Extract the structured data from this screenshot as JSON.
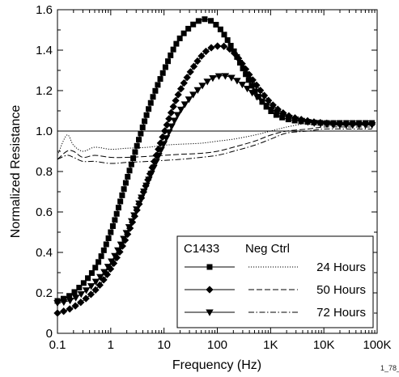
{
  "chart_data": {
    "type": "line",
    "xlabel": "Frequency (Hz)",
    "ylabel": "Normalized Resistance",
    "xscale": "log",
    "xlim": [
      0.1,
      100000
    ],
    "ylim": [
      0,
      1.6
    ],
    "x_ticks": [
      {
        "value": 0.1,
        "label": "0.1"
      },
      {
        "value": 1,
        "label": "1"
      },
      {
        "value": 10,
        "label": "10"
      },
      {
        "value": 100,
        "label": "100"
      },
      {
        "value": 1000,
        "label": "1K"
      },
      {
        "value": 10000,
        "label": "10K"
      },
      {
        "value": 100000,
        "label": "100K"
      }
    ],
    "y_ticks": [
      {
        "value": 0,
        "label": "0"
      },
      {
        "value": 0.2,
        "label": "0.2"
      },
      {
        "value": 0.4,
        "label": "0.4"
      },
      {
        "value": 0.6,
        "label": "0.6"
      },
      {
        "value": 0.8,
        "label": "0.8"
      },
      {
        "value": 1.0,
        "label": "1.0"
      },
      {
        "value": 1.2,
        "label": "1.2"
      },
      {
        "value": 1.4,
        "label": "1.4"
      },
      {
        "value": 1.6,
        "label": "1.6"
      }
    ],
    "reference_line": 1.0,
    "grid": false,
    "legend_placement": "bottom-right",
    "legend_headers": [
      "C1433",
      "Neg Ctrl"
    ],
    "legend_rows": [
      "24 Hours",
      "50 Hours",
      "72 Hours"
    ],
    "figure_id": "1_78_2",
    "series": [
      {
        "group": "C1433",
        "name": "24 Hours",
        "marker": "square",
        "line": "solid",
        "x": [
          0.1,
          0.2,
          0.5,
          1,
          2,
          5,
          10,
          20,
          50,
          100,
          200,
          500,
          1000,
          2000,
          5000,
          10000,
          20000,
          50000,
          80000
        ],
        "y": [
          0.16,
          0.2,
          0.32,
          0.5,
          0.76,
          1.1,
          1.3,
          1.46,
          1.55,
          1.52,
          1.4,
          1.2,
          1.1,
          1.06,
          1.045,
          1.04,
          1.04,
          1.04,
          1.04
        ]
      },
      {
        "group": "C1433",
        "name": "50 Hours",
        "marker": "diamond",
        "line": "solid",
        "x": [
          0.1,
          0.2,
          0.5,
          1,
          2,
          5,
          10,
          20,
          50,
          100,
          200,
          500,
          1000,
          2000,
          5000,
          10000,
          20000,
          50000,
          80000
        ],
        "y": [
          0.1,
          0.13,
          0.21,
          0.32,
          0.48,
          0.76,
          0.99,
          1.2,
          1.37,
          1.42,
          1.39,
          1.24,
          1.14,
          1.08,
          1.05,
          1.04,
          1.035,
          1.035,
          1.035
        ]
      },
      {
        "group": "C1433",
        "name": "72 Hours",
        "marker": "triangle-down",
        "line": "solid",
        "x": [
          0.1,
          0.2,
          0.5,
          1,
          2,
          5,
          10,
          20,
          50,
          100,
          200,
          500,
          1000,
          2000,
          5000,
          10000,
          20000,
          50000,
          80000
        ],
        "y": [
          0.15,
          0.17,
          0.25,
          0.35,
          0.5,
          0.75,
          0.94,
          1.1,
          1.22,
          1.27,
          1.26,
          1.18,
          1.11,
          1.07,
          1.045,
          1.035,
          1.03,
          1.03,
          1.03
        ]
      },
      {
        "group": "Neg Ctrl",
        "name": "24 Hours",
        "marker": "none",
        "line": "dotted",
        "x": [
          0.1,
          0.15,
          0.2,
          0.3,
          0.5,
          1,
          2,
          5,
          10,
          20,
          50,
          100,
          200,
          500,
          1000,
          2000,
          5000,
          10000,
          30000,
          80000
        ],
        "y": [
          0.88,
          0.98,
          0.93,
          0.9,
          0.92,
          0.91,
          0.915,
          0.92,
          0.93,
          0.935,
          0.94,
          0.95,
          0.96,
          0.98,
          1.0,
          1.02,
          1.04,
          1.05,
          1.05,
          1.05
        ]
      },
      {
        "group": "Neg Ctrl",
        "name": "50 Hours",
        "marker": "none",
        "line": "dashed",
        "x": [
          0.1,
          0.15,
          0.2,
          0.3,
          0.5,
          1,
          2,
          5,
          10,
          20,
          50,
          100,
          200,
          500,
          1000,
          2000,
          5000,
          10000,
          30000,
          80000
        ],
        "y": [
          0.86,
          0.9,
          0.9,
          0.87,
          0.88,
          0.87,
          0.87,
          0.875,
          0.88,
          0.885,
          0.89,
          0.9,
          0.92,
          0.95,
          0.98,
          1.0,
          1.01,
          1.02,
          1.02,
          1.02
        ]
      },
      {
        "group": "Neg Ctrl",
        "name": "72 Hours",
        "marker": "none",
        "line": "dashdot",
        "x": [
          0.1,
          0.15,
          0.2,
          0.3,
          0.5,
          1,
          2,
          5,
          10,
          20,
          50,
          100,
          200,
          500,
          1000,
          2000,
          5000,
          10000,
          30000,
          80000
        ],
        "y": [
          0.86,
          0.88,
          0.87,
          0.85,
          0.85,
          0.84,
          0.845,
          0.85,
          0.855,
          0.86,
          0.87,
          0.88,
          0.9,
          0.93,
          0.96,
          0.99,
          1.0,
          1.01,
          1.01,
          1.01
        ]
      }
    ]
  }
}
